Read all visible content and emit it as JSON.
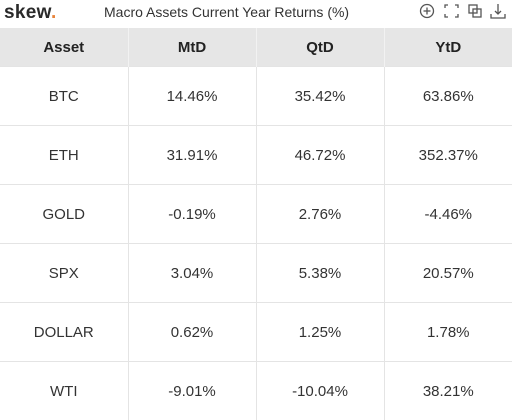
{
  "header": {
    "logo": "skew",
    "logo_dot": ".",
    "title": "Macro Assets Current Year Returns (%)"
  },
  "table": {
    "columns": [
      "Asset",
      "MtD",
      "QtD",
      "YtD"
    ],
    "rows": [
      [
        "BTC",
        "14.46%",
        "35.42%",
        "63.86%"
      ],
      [
        "ETH",
        "31.91%",
        "46.72%",
        "352.37%"
      ],
      [
        "GOLD",
        "-0.19%",
        "2.76%",
        "-4.46%"
      ],
      [
        "SPX",
        "3.04%",
        "5.38%",
        "20.57%"
      ],
      [
        "DOLLAR",
        "0.62%",
        "1.25%",
        "1.78%"
      ],
      [
        "WTI",
        "-9.01%",
        "-10.04%",
        "38.21%"
      ]
    ]
  }
}
